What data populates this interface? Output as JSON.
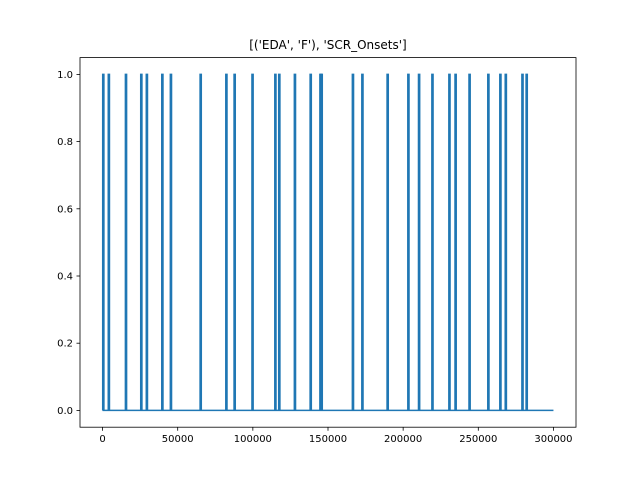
{
  "chart_data": {
    "type": "line",
    "title": "[('EDA', 'F'), 'SCR_Onsets']",
    "xlabel": "",
    "ylabel": "",
    "xlim": [
      -15000,
      315000
    ],
    "ylim": [
      -0.05,
      1.05
    ],
    "x_ticks": [
      0,
      50000,
      100000,
      150000,
      200000,
      250000,
      300000
    ],
    "y_ticks": [
      0.0,
      0.2,
      0.4,
      0.6,
      0.8,
      1.0
    ],
    "x_tick_labels": [
      "0",
      "50000",
      "100000",
      "150000",
      "200000",
      "250000",
      "300000"
    ],
    "y_tick_labels": [
      "0.0",
      "0.2",
      "0.4",
      "0.6",
      "0.8",
      "1.0"
    ],
    "grid": false,
    "legend": "none",
    "series": [
      {
        "color": "#1f77b4",
        "baseline": 0,
        "x_range": [
          0,
          300000
        ],
        "spike_value": 1,
        "spike_x": [
          500,
          4200,
          15600,
          25800,
          29500,
          39800,
          45500,
          65300,
          82400,
          87900,
          99800,
          115000,
          117600,
          128000,
          138500,
          145000,
          145800,
          166600,
          172900,
          189700,
          203500,
          210600,
          219500,
          230800,
          234900,
          244200,
          256700,
          264700,
          268300,
          279400,
          282200
        ]
      }
    ]
  }
}
